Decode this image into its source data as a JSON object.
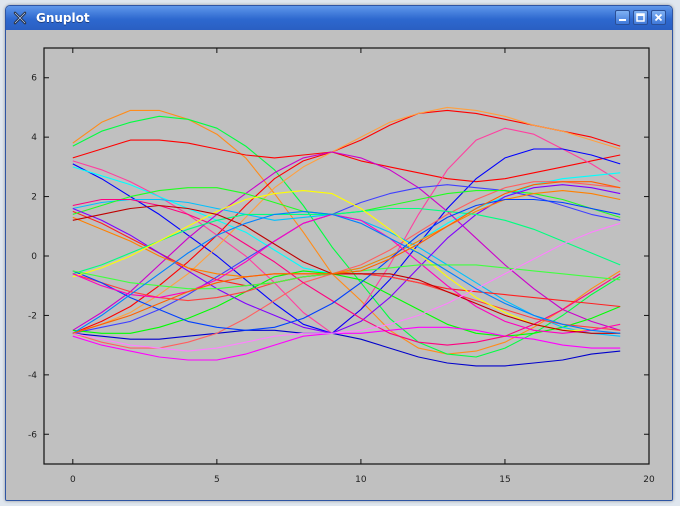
{
  "window": {
    "title": "Gnuplot"
  },
  "icons": {
    "app": "gnuplot-x-icon",
    "minimize": "minimize-icon",
    "maximize": "maximize-icon",
    "close": "close-icon"
  },
  "colors": {
    "titlebar": "#2d68cf",
    "plot_background": "#c0c0c0"
  },
  "chart_data": {
    "type": "line",
    "title": "",
    "xlabel": "",
    "ylabel": "",
    "xlim": [
      -1,
      20
    ],
    "ylim": [
      -7,
      7
    ],
    "x_ticks": [
      0,
      5,
      10,
      15,
      20
    ],
    "y_ticks": [
      -6,
      -4,
      -2,
      0,
      2,
      4,
      6
    ],
    "x_tick_labels": [
      "0",
      "5",
      "10",
      "15",
      "20"
    ],
    "y_tick_labels": [
      "-6",
      "-4",
      "-2",
      "0",
      "2",
      "4",
      "6"
    ],
    "grid": false,
    "x": [
      0,
      1,
      2,
      3,
      4,
      5,
      6,
      7,
      8,
      9,
      10,
      11,
      12,
      13,
      14,
      15,
      16,
      17,
      18,
      19
    ],
    "series": [
      {
        "color": "#ff8c1a",
        "values": [
          3.8,
          4.5,
          4.9,
          4.9,
          4.6,
          4.1,
          3.3,
          2.1,
          0.8,
          -0.6,
          -1.5,
          -2.5,
          -3.1,
          -3.3,
          -3.2,
          -2.9,
          -2.4,
          -1.8,
          -1.1,
          -0.5
        ]
      },
      {
        "color": "#00ff40",
        "values": [
          3.7,
          4.2,
          4.5,
          4.7,
          4.6,
          4.3,
          3.7,
          2.9,
          1.7,
          0.3,
          -0.9,
          -2.1,
          -2.9,
          -3.3,
          -3.4,
          -3.1,
          -2.6,
          -2.0,
          -1.3,
          -0.7
        ]
      },
      {
        "color": "#ff0000",
        "values": [
          3.3,
          3.6,
          3.9,
          3.9,
          3.8,
          3.6,
          3.4,
          3.3,
          3.4,
          3.5,
          3.2,
          3.0,
          2.8,
          2.6,
          2.5,
          2.6,
          2.8,
          3.0,
          3.2,
          3.4
        ]
      },
      {
        "color": "#ff3fa0",
        "values": [
          3.2,
          2.9,
          2.5,
          2.0,
          1.4,
          0.7,
          0.0,
          -0.9,
          -1.9,
          -2.6,
          -1.8,
          -0.3,
          1.4,
          2.9,
          3.9,
          4.3,
          4.1,
          3.6,
          3.1,
          2.5
        ]
      },
      {
        "color": "#0000ff",
        "values": [
          3.1,
          2.6,
          2.0,
          1.4,
          0.7,
          0.0,
          -0.8,
          -1.6,
          -2.3,
          -2.6,
          -1.8,
          -0.8,
          0.4,
          1.6,
          2.6,
          3.3,
          3.6,
          3.6,
          3.4,
          3.1
        ]
      },
      {
        "color": "#00ffff",
        "values": [
          3.0,
          2.7,
          2.4,
          2.0,
          1.6,
          1.2,
          0.8,
          0.2,
          -0.4,
          -0.6,
          -0.4,
          0.0,
          0.5,
          1.1,
          1.6,
          2.0,
          2.4,
          2.6,
          2.7,
          2.8
        ]
      },
      {
        "color": "#ff0000",
        "values": [
          -2.6,
          -2.2,
          -1.7,
          -1.0,
          -0.2,
          0.7,
          1.7,
          2.6,
          3.2,
          3.5,
          3.9,
          4.4,
          4.8,
          4.9,
          4.8,
          4.6,
          4.4,
          4.2,
          4.0,
          3.7
        ]
      },
      {
        "color": "#ffa040",
        "values": [
          -2.6,
          -2.3,
          -1.9,
          -1.3,
          -0.6,
          0.3,
          1.3,
          2.3,
          3.0,
          3.5,
          4.0,
          4.5,
          4.8,
          5.0,
          4.9,
          4.7,
          4.4,
          4.2,
          3.9,
          3.6
        ]
      },
      {
        "color": "#cc00cc",
        "values": [
          -2.5,
          -1.9,
          -1.2,
          -0.3,
          0.6,
          1.4,
          2.1,
          2.8,
          3.3,
          3.5,
          3.3,
          2.9,
          2.3,
          1.5,
          0.6,
          -0.3,
          -1.1,
          -1.8,
          -2.2,
          -2.5
        ]
      },
      {
        "color": "#4040ff",
        "values": [
          -2.6,
          -2.4,
          -2.2,
          -1.8,
          -1.3,
          -0.7,
          -0.1,
          0.5,
          1.1,
          1.4,
          1.8,
          2.1,
          2.3,
          2.4,
          2.3,
          2.2,
          2.0,
          1.7,
          1.4,
          1.2
        ]
      },
      {
        "color": "#00ff00",
        "values": [
          -2.5,
          -2.6,
          -2.6,
          -2.4,
          -2.1,
          -1.7,
          -1.2,
          -0.7,
          -0.5,
          -0.6,
          -0.8,
          -1.3,
          -1.8,
          -2.3,
          -2.6,
          -2.7,
          -2.6,
          -2.4,
          -2.1,
          -1.7
        ]
      },
      {
        "color": "#ff00ff",
        "values": [
          -2.7,
          -3.0,
          -3.2,
          -3.4,
          -3.5,
          -3.5,
          -3.3,
          -3.0,
          -2.7,
          -2.6,
          -2.6,
          -2.5,
          -2.4,
          -2.4,
          -2.5,
          -2.7,
          -2.8,
          -3.0,
          -3.1,
          -3.1
        ]
      },
      {
        "color": "#0000cc",
        "values": [
          -2.6,
          -2.7,
          -2.8,
          -2.8,
          -2.7,
          -2.6,
          -2.5,
          -2.5,
          -2.6,
          -2.6,
          -2.8,
          -3.1,
          -3.4,
          -3.6,
          -3.7,
          -3.7,
          -3.6,
          -3.5,
          -3.3,
          -3.2
        ]
      },
      {
        "color": "#ff6060",
        "values": [
          -2.6,
          -2.9,
          -3.1,
          -3.1,
          -2.9,
          -2.6,
          -2.1,
          -1.5,
          -0.9,
          -0.6,
          -0.3,
          0.2,
          0.8,
          1.4,
          1.9,
          2.3,
          2.5,
          2.5,
          2.4,
          2.3
        ]
      },
      {
        "color": "#00c0ff",
        "values": [
          1.6,
          1.8,
          1.9,
          1.9,
          1.8,
          1.6,
          1.4,
          1.2,
          1.3,
          1.4,
          1.2,
          0.8,
          0.3,
          -0.3,
          -0.9,
          -1.5,
          -2.0,
          -2.4,
          -2.6,
          -2.7
        ]
      },
      {
        "color": "#ff2020",
        "values": [
          1.5,
          1.1,
          0.6,
          0.1,
          -0.4,
          -0.8,
          -1.0,
          -0.9,
          -0.7,
          -0.6,
          -0.6,
          -0.7,
          -0.9,
          -1.1,
          -1.2,
          -1.3,
          -1.4,
          -1.5,
          -1.6,
          -1.7
        ]
      },
      {
        "color": "#20ff20",
        "values": [
          1.4,
          1.7,
          2.0,
          2.2,
          2.3,
          2.3,
          2.1,
          1.8,
          1.5,
          1.4,
          1.5,
          1.7,
          1.9,
          2.1,
          2.2,
          2.2,
          2.1,
          1.9,
          1.6,
          1.3
        ]
      },
      {
        "color": "#8000ff",
        "values": [
          1.6,
          1.2,
          0.7,
          0.1,
          -0.5,
          -1.1,
          -1.6,
          -2.0,
          -2.4,
          -2.6,
          -2.2,
          -1.4,
          -0.4,
          0.6,
          1.4,
          2.0,
          2.3,
          2.4,
          2.3,
          2.1
        ]
      },
      {
        "color": "#ff8000",
        "values": [
          1.3,
          0.9,
          0.5,
          0.0,
          -0.4,
          -0.6,
          -0.7,
          -0.6,
          -0.6,
          -0.6,
          -0.4,
          0.0,
          0.5,
          1.0,
          1.5,
          1.9,
          2.1,
          2.2,
          2.1,
          1.9
        ]
      },
      {
        "color": "#ff0080",
        "values": [
          1.7,
          1.9,
          1.9,
          1.7,
          1.4,
          1.0,
          0.4,
          -0.2,
          -0.9,
          -1.5,
          -2.1,
          -2.6,
          -2.9,
          -3.0,
          -2.9,
          -2.7,
          -2.3,
          -1.8,
          -1.2,
          -0.6
        ]
      },
      {
        "color": "#00ff80",
        "values": [
          -0.6,
          -0.3,
          0.1,
          0.5,
          0.9,
          1.2,
          1.4,
          1.4,
          1.4,
          1.4,
          1.5,
          1.6,
          1.6,
          1.5,
          1.4,
          1.2,
          0.9,
          0.5,
          0.1,
          -0.3
        ]
      },
      {
        "color": "#ff4040",
        "values": [
          -0.6,
          -0.9,
          -1.2,
          -1.4,
          -1.5,
          -1.4,
          -1.2,
          -0.9,
          -0.7,
          -0.6,
          -0.6,
          -0.7,
          -0.9,
          -1.2,
          -1.5,
          -1.8,
          -2.1,
          -2.3,
          -2.4,
          -2.5
        ]
      },
      {
        "color": "#0040ff",
        "values": [
          -0.5,
          -0.9,
          -1.4,
          -1.8,
          -2.2,
          -2.4,
          -2.5,
          -2.4,
          -2.1,
          -1.6,
          -0.9,
          -0.1,
          0.7,
          1.3,
          1.7,
          1.9,
          1.9,
          1.8,
          1.6,
          1.4
        ]
      },
      {
        "color": "#ffff00",
        "values": [
          -0.7,
          -0.4,
          0.0,
          0.5,
          1.0,
          1.5,
          1.9,
          2.1,
          2.2,
          2.1,
          1.6,
          0.9,
          0.1,
          -0.7,
          -1.4,
          -1.9,
          -2.3,
          -2.5,
          -2.5,
          -2.3
        ]
      },
      {
        "color": "#ff00c0",
        "values": [
          -0.6,
          -1.0,
          -1.3,
          -1.4,
          -1.2,
          -0.8,
          -0.2,
          0.5,
          1.1,
          1.4,
          1.2,
          0.6,
          -0.2,
          -1.0,
          -1.7,
          -2.2,
          -2.5,
          -2.6,
          -2.5,
          -2.3
        ]
      },
      {
        "color": "#40ff40",
        "values": [
          -0.5,
          -0.7,
          -0.9,
          -1.0,
          -1.1,
          -1.1,
          -1.0,
          -0.9,
          -0.7,
          -0.6,
          -0.5,
          -0.4,
          -0.3,
          -0.3,
          -0.3,
          -0.4,
          -0.5,
          -0.6,
          -0.7,
          -0.8
        ]
      },
      {
        "color": "#c00000",
        "values": [
          1.2,
          1.4,
          1.6,
          1.7,
          1.6,
          1.4,
          1.0,
          0.4,
          -0.2,
          -0.6,
          -0.6,
          -0.6,
          -0.8,
          -1.2,
          -1.6,
          -2.0,
          -2.3,
          -2.5,
          -2.6,
          -2.6
        ]
      },
      {
        "color": "#ff80ff",
        "values": [
          -2.6,
          -2.8,
          -3.0,
          -3.1,
          -3.2,
          -3.1,
          -2.9,
          -2.7,
          -2.6,
          -2.6,
          -2.5,
          -2.3,
          -2.0,
          -1.6,
          -1.1,
          -0.6,
          -0.1,
          0.4,
          0.8,
          1.1
        ]
      },
      {
        "color": "#0080ff",
        "values": [
          -2.6,
          -2.0,
          -1.3,
          -0.6,
          0.1,
          0.7,
          1.1,
          1.4,
          1.5,
          1.4,
          1.1,
          0.6,
          0.1,
          -0.5,
          -1.1,
          -1.6,
          -2.0,
          -2.3,
          -2.5,
          -2.6
        ]
      },
      {
        "color": "#ff6000",
        "values": [
          -2.6,
          -2.3,
          -2.0,
          -1.6,
          -1.2,
          -0.9,
          -0.7,
          -0.6,
          -0.6,
          -0.6,
          -0.5,
          -0.1,
          0.4,
          1.0,
          1.6,
          2.1,
          2.4,
          2.5,
          2.5,
          2.3
        ]
      }
    ]
  }
}
